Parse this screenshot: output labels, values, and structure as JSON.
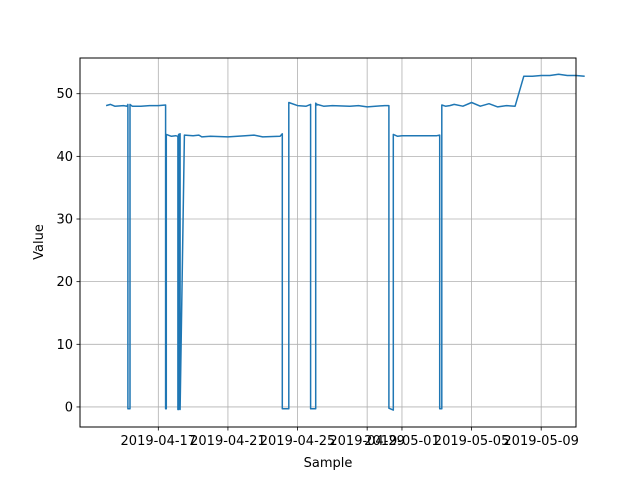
{
  "chart_data": {
    "type": "line",
    "title": "",
    "xlabel": "Sample",
    "ylabel": "Value",
    "grid": true,
    "legend": "none",
    "ylim": [
      -3.2,
      55.7
    ],
    "xlim": [
      "2019-04-12T12:00",
      "2019-05-11T00:00"
    ],
    "x_ticks": [
      "2019-04-17",
      "2019-04-21",
      "2019-04-25",
      "2019-04-29",
      "2019-05-01",
      "2019-05-05",
      "2019-05-09"
    ],
    "y_ticks": [
      0,
      10,
      20,
      30,
      40,
      50
    ],
    "series": [
      {
        "color": "#1f77b4",
        "x": [
          "2019-04-14T00:00",
          "2019-04-14T06:00",
          "2019-04-14T12:00",
          "2019-04-15T00:00",
          "2019-04-15T05:00",
          "2019-04-15T06:00",
          "2019-04-15T06:00",
          "2019-04-15T09:00",
          "2019-04-15T09:00",
          "2019-04-15T12:00",
          "2019-04-16T00:00",
          "2019-04-16T12:00",
          "2019-04-17T00:00",
          "2019-04-17T10:00",
          "2019-04-17T10:00",
          "2019-04-17T11:00",
          "2019-04-17T11:00",
          "2019-04-17T18:00",
          "2019-04-18T00:00",
          "2019-04-18T03:00",
          "2019-04-18T03:00",
          "2019-04-18T04:00",
          "2019-04-18T04:00",
          "2019-04-18T06:00",
          "2019-04-18T06:00",
          "2019-04-18T12:00",
          "2019-04-19T00:00",
          "2019-04-19T08:00",
          "2019-04-19T12:00",
          "2019-04-20T00:00",
          "2019-04-21T00:00",
          "2019-04-22T00:00",
          "2019-04-22T12:00",
          "2019-04-23T00:00",
          "2019-04-24T00:00",
          "2019-04-24T03:00",
          "2019-04-24T03:00",
          "2019-04-24T12:00",
          "2019-04-24T12:00",
          "2019-04-25T00:00",
          "2019-04-25T12:00",
          "2019-04-25T18:00",
          "2019-04-25T18:00",
          "2019-04-26T01:00",
          "2019-04-26T01:00",
          "2019-04-26T03:00",
          "2019-04-26T03:00",
          "2019-04-26T12:00",
          "2019-04-27T00:00",
          "2019-04-28T00:00",
          "2019-04-28T12:00",
          "2019-04-29T00:00",
          "2019-04-30T00:00",
          "2019-04-30T06:00",
          "2019-04-30T06:00",
          "2019-04-30T12:00",
          "2019-04-30T12:00",
          "2019-04-30T18:00",
          "2019-05-01T00:00",
          "2019-05-02T00:00",
          "2019-05-03T00:00",
          "2019-05-03T04:00",
          "2019-05-03T04:00",
          "2019-05-03T07:00",
          "2019-05-03T07:00",
          "2019-05-03T12:00",
          "2019-05-03T18:00",
          "2019-05-04T00:00",
          "2019-05-04T12:00",
          "2019-05-05T00:00",
          "2019-05-05T12:00",
          "2019-05-06T00:00",
          "2019-05-06T12:00",
          "2019-05-07T00:00",
          "2019-05-07T12:00",
          "2019-05-08T00:00",
          "2019-05-08T12:00",
          "2019-05-09T00:00",
          "2019-05-09T12:00",
          "2019-05-10T00:00",
          "2019-05-10T12:00",
          "2019-05-11T00:00",
          "2019-05-11T12:00"
        ],
        "values": [
          48.1,
          48.3,
          48.0,
          48.1,
          48.0,
          48.3,
          -0.3,
          -0.3,
          48.3,
          48.0,
          48.0,
          48.1,
          48.1,
          48.2,
          -0.3,
          -0.3,
          43.5,
          43.2,
          43.3,
          43.2,
          -0.4,
          -0.4,
          43.5,
          43.6,
          -0.4,
          43.4,
          43.3,
          43.4,
          43.1,
          43.2,
          43.1,
          43.3,
          43.4,
          43.1,
          43.2,
          43.6,
          -0.3,
          -0.3,
          48.6,
          48.1,
          48.0,
          48.3,
          -0.3,
          -0.3,
          48.5,
          48.2,
          48.3,
          48.0,
          48.1,
          48.0,
          48.1,
          47.9,
          48.1,
          48.1,
          -0.2,
          -0.5,
          43.5,
          43.2,
          43.3,
          43.3,
          43.3,
          43.4,
          -0.3,
          -0.3,
          48.2,
          48.0,
          48.1,
          48.3,
          48.0,
          48.6,
          48.0,
          48.4,
          47.9,
          48.1,
          48.0,
          52.8,
          52.8,
          52.9,
          52.9,
          53.1,
          52.9,
          52.9,
          52.8
        ]
      }
    ]
  }
}
